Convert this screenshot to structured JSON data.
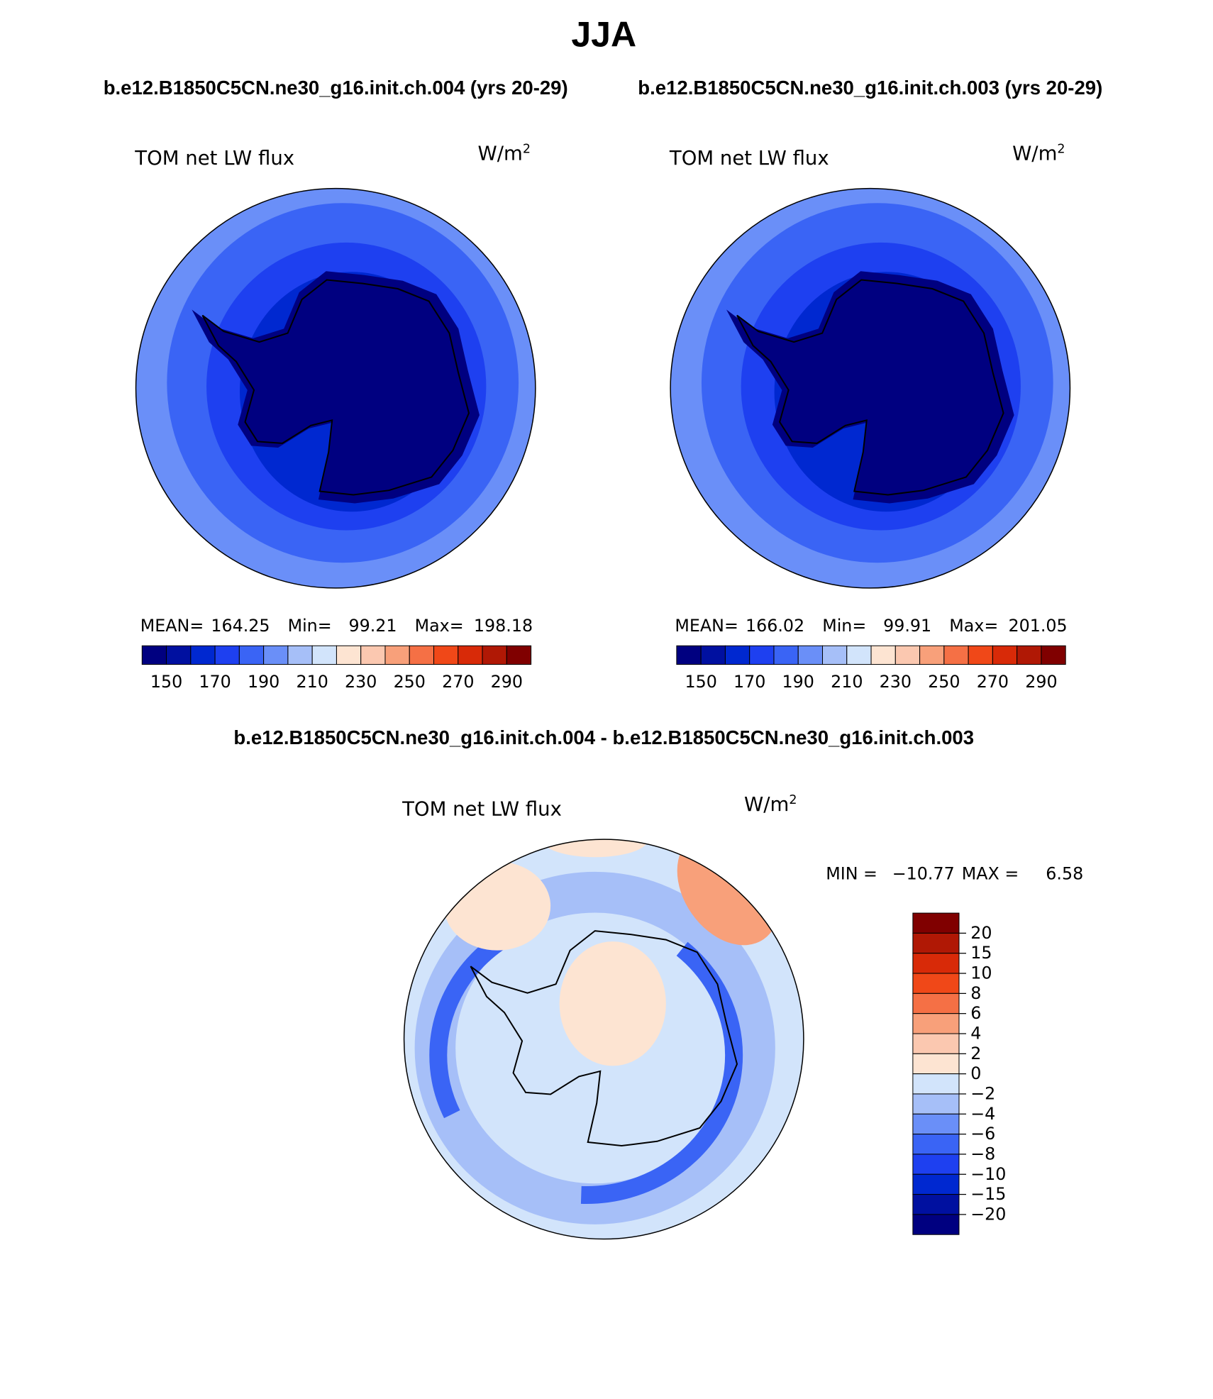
{
  "title": "JJA",
  "panels": [
    {
      "case": "b.e12.B1850C5CN.ne30_g16.init.ch.004 (yrs 20-29)",
      "field": "TOM net LW flux",
      "units": "W/m",
      "units_sup": "2",
      "stats": {
        "mean_label": "MEAN=",
        "mean": "164.25",
        "min_label": "Min=",
        "min": "99.21",
        "max_label": "Max=",
        "max": "198.18"
      }
    },
    {
      "case": "b.e12.B1850C5CN.ne30_g16.init.ch.003 (yrs 20-29)",
      "field": "TOM net LW flux",
      "units": "W/m",
      "units_sup": "2",
      "stats": {
        "mean_label": "MEAN=",
        "mean": "166.02",
        "min_label": "Min=",
        "min": "99.91",
        "max_label": "Max=",
        "max": "201.05"
      }
    }
  ],
  "colorbar": {
    "colors": [
      "#000080",
      "#0010a0",
      "#0028d0",
      "#1e40f0",
      "#3a64f5",
      "#6a8ff8",
      "#a6bff8",
      "#d2e4fb",
      "#fde4d2",
      "#fbc8b0",
      "#f8a07a",
      "#f57045",
      "#f04818",
      "#d82a08",
      "#b01805",
      "#800000"
    ],
    "labels": [
      "150",
      "170",
      "190",
      "210",
      "230",
      "250",
      "270",
      "290"
    ]
  },
  "difference": {
    "title": "b.e12.B1850C5CN.ne30_g16.init.ch.004 - b.e12.B1850C5CN.ne30_g16.init.ch.003",
    "field": "TOM net LW flux",
    "units": "W/m",
    "units_sup": "2",
    "stats": {
      "min_label": "MIN =",
      "min": "−10.77",
      "max_label": "MAX =",
      "max": "6.58"
    },
    "colorbar": {
      "colors": [
        "#800000",
        "#b01805",
        "#d82a08",
        "#f04818",
        "#f57045",
        "#f8a07a",
        "#fbc8b0",
        "#fde4d2",
        "#d2e4fb",
        "#a6bff8",
        "#6a8ff8",
        "#3a64f5",
        "#1e40f0",
        "#0028d0",
        "#0010a0",
        "#000080"
      ],
      "labels": [
        "20",
        "15",
        "10",
        "8",
        "6",
        "4",
        "2",
        "0",
        "−2",
        "−4",
        "−6",
        "−8",
        "−10",
        "−15",
        "−20"
      ]
    }
  }
}
